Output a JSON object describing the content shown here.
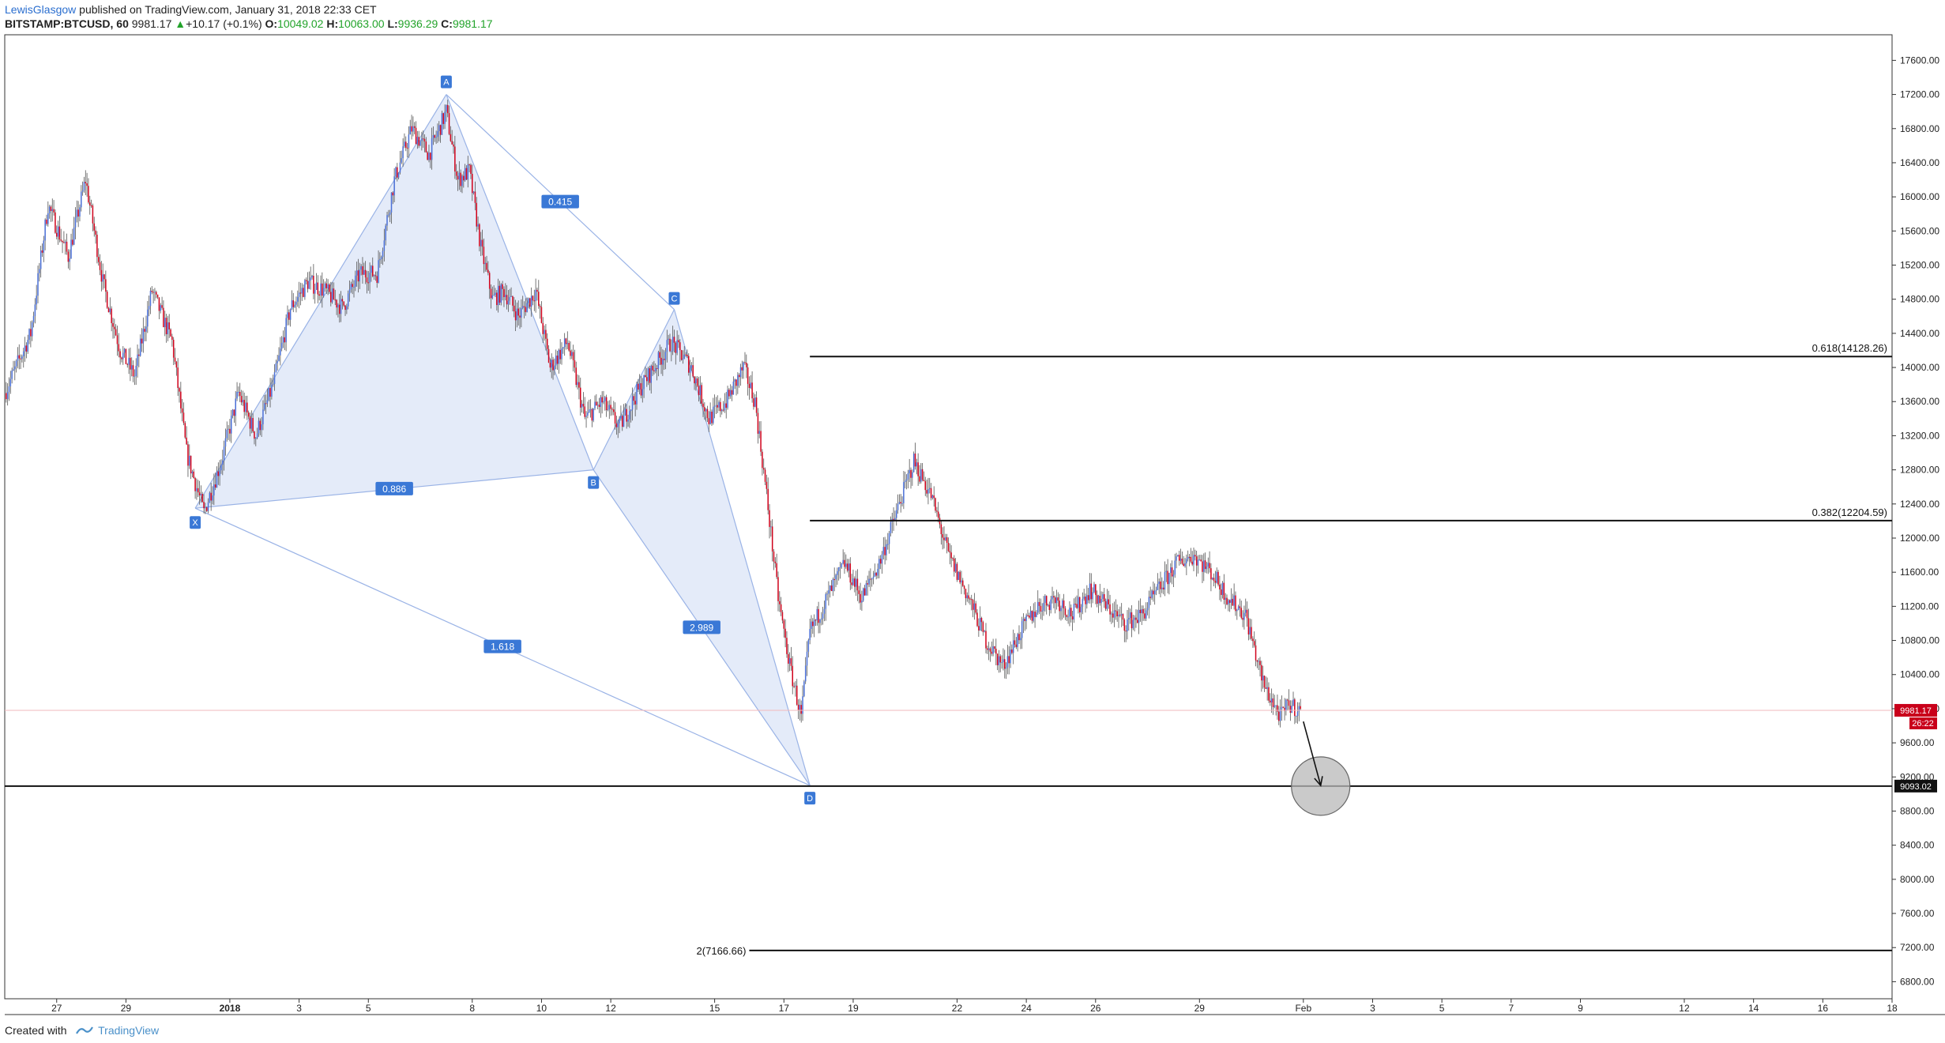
{
  "header": {
    "author": "LewisGlasgow",
    "published": "published on TradingView.com, January 31, 2018 22:33 CET",
    "symbol": "BITSTAMP:BTCUSD, 60",
    "last": "9981.17",
    "change": "+10.17 (+0.1%)",
    "o_label": "O:",
    "o_value": "10049.02",
    "h_label": "H:",
    "h_value": "10063.00",
    "l_label": "L:",
    "l_value": "9936.29",
    "c_label": "C:",
    "c_value": "9981.17"
  },
  "footer": {
    "created_with": "Created with",
    "brand": "TradingView"
  },
  "colors": {
    "up": "#4a6fd6",
    "down": "#d0021b",
    "pattern_fill": "#dfe8f8",
    "pattern_line": "#9ab3e6",
    "label_bg": "#3a78d6",
    "price_line": "#f2b8bc"
  },
  "chart_data": {
    "type": "candlestick",
    "symbol": "BITSTAMP:BTCUSD",
    "interval": "60",
    "ylim": [
      6600,
      17900
    ],
    "y_ticks": [
      6800,
      7200,
      7600,
      8000,
      8400,
      8800,
      9200,
      9600,
      10000,
      10400,
      10800,
      11200,
      11600,
      12000,
      12400,
      12800,
      13200,
      13600,
      14000,
      14400,
      14800,
      15200,
      15600,
      16000,
      16400,
      16800,
      17200,
      17600
    ],
    "y_tick_labels": [
      "6800.00",
      "7200.00",
      "7600.00",
      "8000.00",
      "8400.00",
      "8800.00",
      "9200.00",
      "9600.00",
      "10000.00",
      "10400.00",
      "10800.00",
      "11200.00",
      "11600.00",
      "12000.00",
      "12400.00",
      "12800.00",
      "13200.00",
      "13600.00",
      "14000.00",
      "14400.00",
      "14800.00",
      "15200.00",
      "15600.00",
      "16000.00",
      "16400.00",
      "16800.00",
      "17200.00",
      "17600.00"
    ],
    "xlim": [
      "2017-12-25T12:00",
      "2018-02-18T00:00"
    ],
    "x_ticks": [
      {
        "date": "2017-12-27",
        "label": "27"
      },
      {
        "date": "2017-12-29",
        "label": "29"
      },
      {
        "date": "2018-01-01",
        "label": "2018"
      },
      {
        "date": "2018-01-03",
        "label": "3"
      },
      {
        "date": "2018-01-05",
        "label": "5"
      },
      {
        "date": "2018-01-08",
        "label": "8"
      },
      {
        "date": "2018-01-10",
        "label": "10"
      },
      {
        "date": "2018-01-12",
        "label": "12"
      },
      {
        "date": "2018-01-15",
        "label": "15"
      },
      {
        "date": "2018-01-17",
        "label": "17"
      },
      {
        "date": "2018-01-19",
        "label": "19"
      },
      {
        "date": "2018-01-22",
        "label": "22"
      },
      {
        "date": "2018-01-24",
        "label": "24"
      },
      {
        "date": "2018-01-26",
        "label": "26"
      },
      {
        "date": "2018-01-29",
        "label": "29"
      },
      {
        "date": "2018-02-01",
        "label": "Feb"
      },
      {
        "date": "2018-02-03",
        "label": "3"
      },
      {
        "date": "2018-02-05",
        "label": "5"
      },
      {
        "date": "2018-02-07",
        "label": "7"
      },
      {
        "date": "2018-02-09",
        "label": "9"
      },
      {
        "date": "2018-02-12",
        "label": "12"
      },
      {
        "date": "2018-02-14",
        "label": "14"
      },
      {
        "date": "2018-02-16",
        "label": "16"
      },
      {
        "date": "2018-02-18",
        "label": "18"
      }
    ],
    "price_path": [
      [
        "2017-12-25T12:00",
        13700
      ],
      [
        "2017-12-26T06:00",
        14400
      ],
      [
        "2017-12-26T18:00",
        15900
      ],
      [
        "2017-12-27T08:00",
        15300
      ],
      [
        "2017-12-27T20:00",
        16200
      ],
      [
        "2017-12-28T08:00",
        15000
      ],
      [
        "2017-12-28T20:00",
        14200
      ],
      [
        "2017-12-29T06:00",
        13900
      ],
      [
        "2017-12-29T18:00",
        14900
      ],
      [
        "2017-12-30T08:00",
        14300
      ],
      [
        "2017-12-30T18:00",
        13000
      ],
      [
        "2017-12-31T06:00",
        12300
      ],
      [
        "2017-12-31T18:00",
        12900
      ],
      [
        "2018-01-01T06:00",
        13700
      ],
      [
        "2018-01-01T18:00",
        13200
      ],
      [
        "2018-01-02T06:00",
        13800
      ],
      [
        "2018-01-02T18:00",
        14700
      ],
      [
        "2018-01-03T06:00",
        15000
      ],
      [
        "2018-01-03T18:00",
        14900
      ],
      [
        "2018-01-04T06:00",
        14700
      ],
      [
        "2018-01-04T18:00",
        15100
      ],
      [
        "2018-01-05T06:00",
        15100
      ],
      [
        "2018-01-05T18:00",
        16200
      ],
      [
        "2018-01-06T06:00",
        16800
      ],
      [
        "2018-01-06T18:00",
        16500
      ],
      [
        "2018-01-07T06:00",
        17000
      ],
      [
        "2018-01-07T14:00",
        16200
      ],
      [
        "2018-01-07T22:00",
        16300
      ],
      [
        "2018-01-08T06:00",
        15400
      ],
      [
        "2018-01-08T14:00",
        14800
      ],
      [
        "2018-01-08T22:00",
        14900
      ],
      [
        "2018-01-09T08:00",
        14600
      ],
      [
        "2018-01-09T20:00",
        14900
      ],
      [
        "2018-01-10T06:00",
        14000
      ],
      [
        "2018-01-10T18:00",
        14300
      ],
      [
        "2018-01-11T06:00",
        13400
      ],
      [
        "2018-01-11T18:00",
        13600
      ],
      [
        "2018-01-12T06:00",
        13300
      ],
      [
        "2018-01-12T18:00",
        13700
      ],
      [
        "2018-01-13T06:00",
        14000
      ],
      [
        "2018-01-13T18:00",
        14300
      ],
      [
        "2018-01-14T08:00",
        14000
      ],
      [
        "2018-01-14T20:00",
        13400
      ],
      [
        "2018-01-15T08:00",
        13600
      ],
      [
        "2018-01-15T20:00",
        14000
      ],
      [
        "2018-01-16T04:00",
        13600
      ],
      [
        "2018-01-16T12:00",
        12500
      ],
      [
        "2018-01-16T20:00",
        11300
      ],
      [
        "2018-01-17T04:00",
        10500
      ],
      [
        "2018-01-17T12:00",
        9900
      ],
      [
        "2018-01-17T18:00",
        10900
      ],
      [
        "2018-01-18T06:00",
        11300
      ],
      [
        "2018-01-18T18:00",
        11700
      ],
      [
        "2018-01-19T06:00",
        11300
      ],
      [
        "2018-01-19T18:00",
        11700
      ],
      [
        "2018-01-20T06:00",
        12300
      ],
      [
        "2018-01-20T18:00",
        12900
      ],
      [
        "2018-01-21T06:00",
        12500
      ],
      [
        "2018-01-21T18:00",
        11800
      ],
      [
        "2018-01-22T08:00",
        11300
      ],
      [
        "2018-01-22T20:00",
        10800
      ],
      [
        "2018-01-23T08:00",
        10500
      ],
      [
        "2018-01-23T20:00",
        10900
      ],
      [
        "2018-01-24T08:00",
        11200
      ],
      [
        "2018-01-24T20:00",
        11300
      ],
      [
        "2018-01-25T08:00",
        11100
      ],
      [
        "2018-01-25T20:00",
        11400
      ],
      [
        "2018-01-26T08:00",
        11200
      ],
      [
        "2018-01-26T20:00",
        11000
      ],
      [
        "2018-01-27T08:00",
        11100
      ],
      [
        "2018-01-27T20:00",
        11400
      ],
      [
        "2018-01-28T08:00",
        11700
      ],
      [
        "2018-01-28T20:00",
        11800
      ],
      [
        "2018-01-29T08:00",
        11600
      ],
      [
        "2018-01-29T20:00",
        11300
      ],
      [
        "2018-01-30T08:00",
        11100
      ],
      [
        "2018-01-30T20:00",
        10300
      ],
      [
        "2018-01-31T08:00",
        9900
      ],
      [
        "2018-01-31T14:00",
        10050
      ],
      [
        "2018-01-31T22:00",
        9981.17
      ]
    ],
    "last_price": 9981.17,
    "last_price_label": "9981.17",
    "countdown_label": "26:22",
    "harmonic_pattern": {
      "points": {
        "X": {
          "date": "2017-12-31T00:00",
          "price": 12350
        },
        "A": {
          "date": "2018-01-07T06:00",
          "price": 17200
        },
        "B": {
          "date": "2018-01-11T12:00",
          "price": 12800
        },
        "C": {
          "date": "2018-01-13T20:00",
          "price": 14680
        },
        "D": {
          "date": "2018-01-17T18:00",
          "price": 9100
        }
      },
      "ratios": {
        "XB": "0.886",
        "AC": "0.415",
        "BD": "2.989",
        "XD": "1.618"
      }
    },
    "horizontal_levels": [
      {
        "price": 14128.26,
        "label": "0.618(14128.26)",
        "from": "2018-01-17T18:00",
        "label_side": "right"
      },
      {
        "price": 12204.59,
        "label": "0.382(12204.59)",
        "from": "2018-01-17T18:00",
        "label_side": "right"
      },
      {
        "price": 9093.02,
        "label": "9093.02",
        "from": "2017-12-25T12:00",
        "label_side": "axis"
      },
      {
        "price": 7166.66,
        "label": "2(7166.66)",
        "from": "2018-01-16T00:00",
        "label_side": "left"
      }
    ],
    "target_circle": {
      "date": "2018-02-01T12:00",
      "price": 9093.02
    },
    "projection_arrow": {
      "from_date": "2018-02-01T00:00",
      "from_price": 9850,
      "to_date": "2018-02-01T12:00",
      "to_price": 9100
    }
  }
}
